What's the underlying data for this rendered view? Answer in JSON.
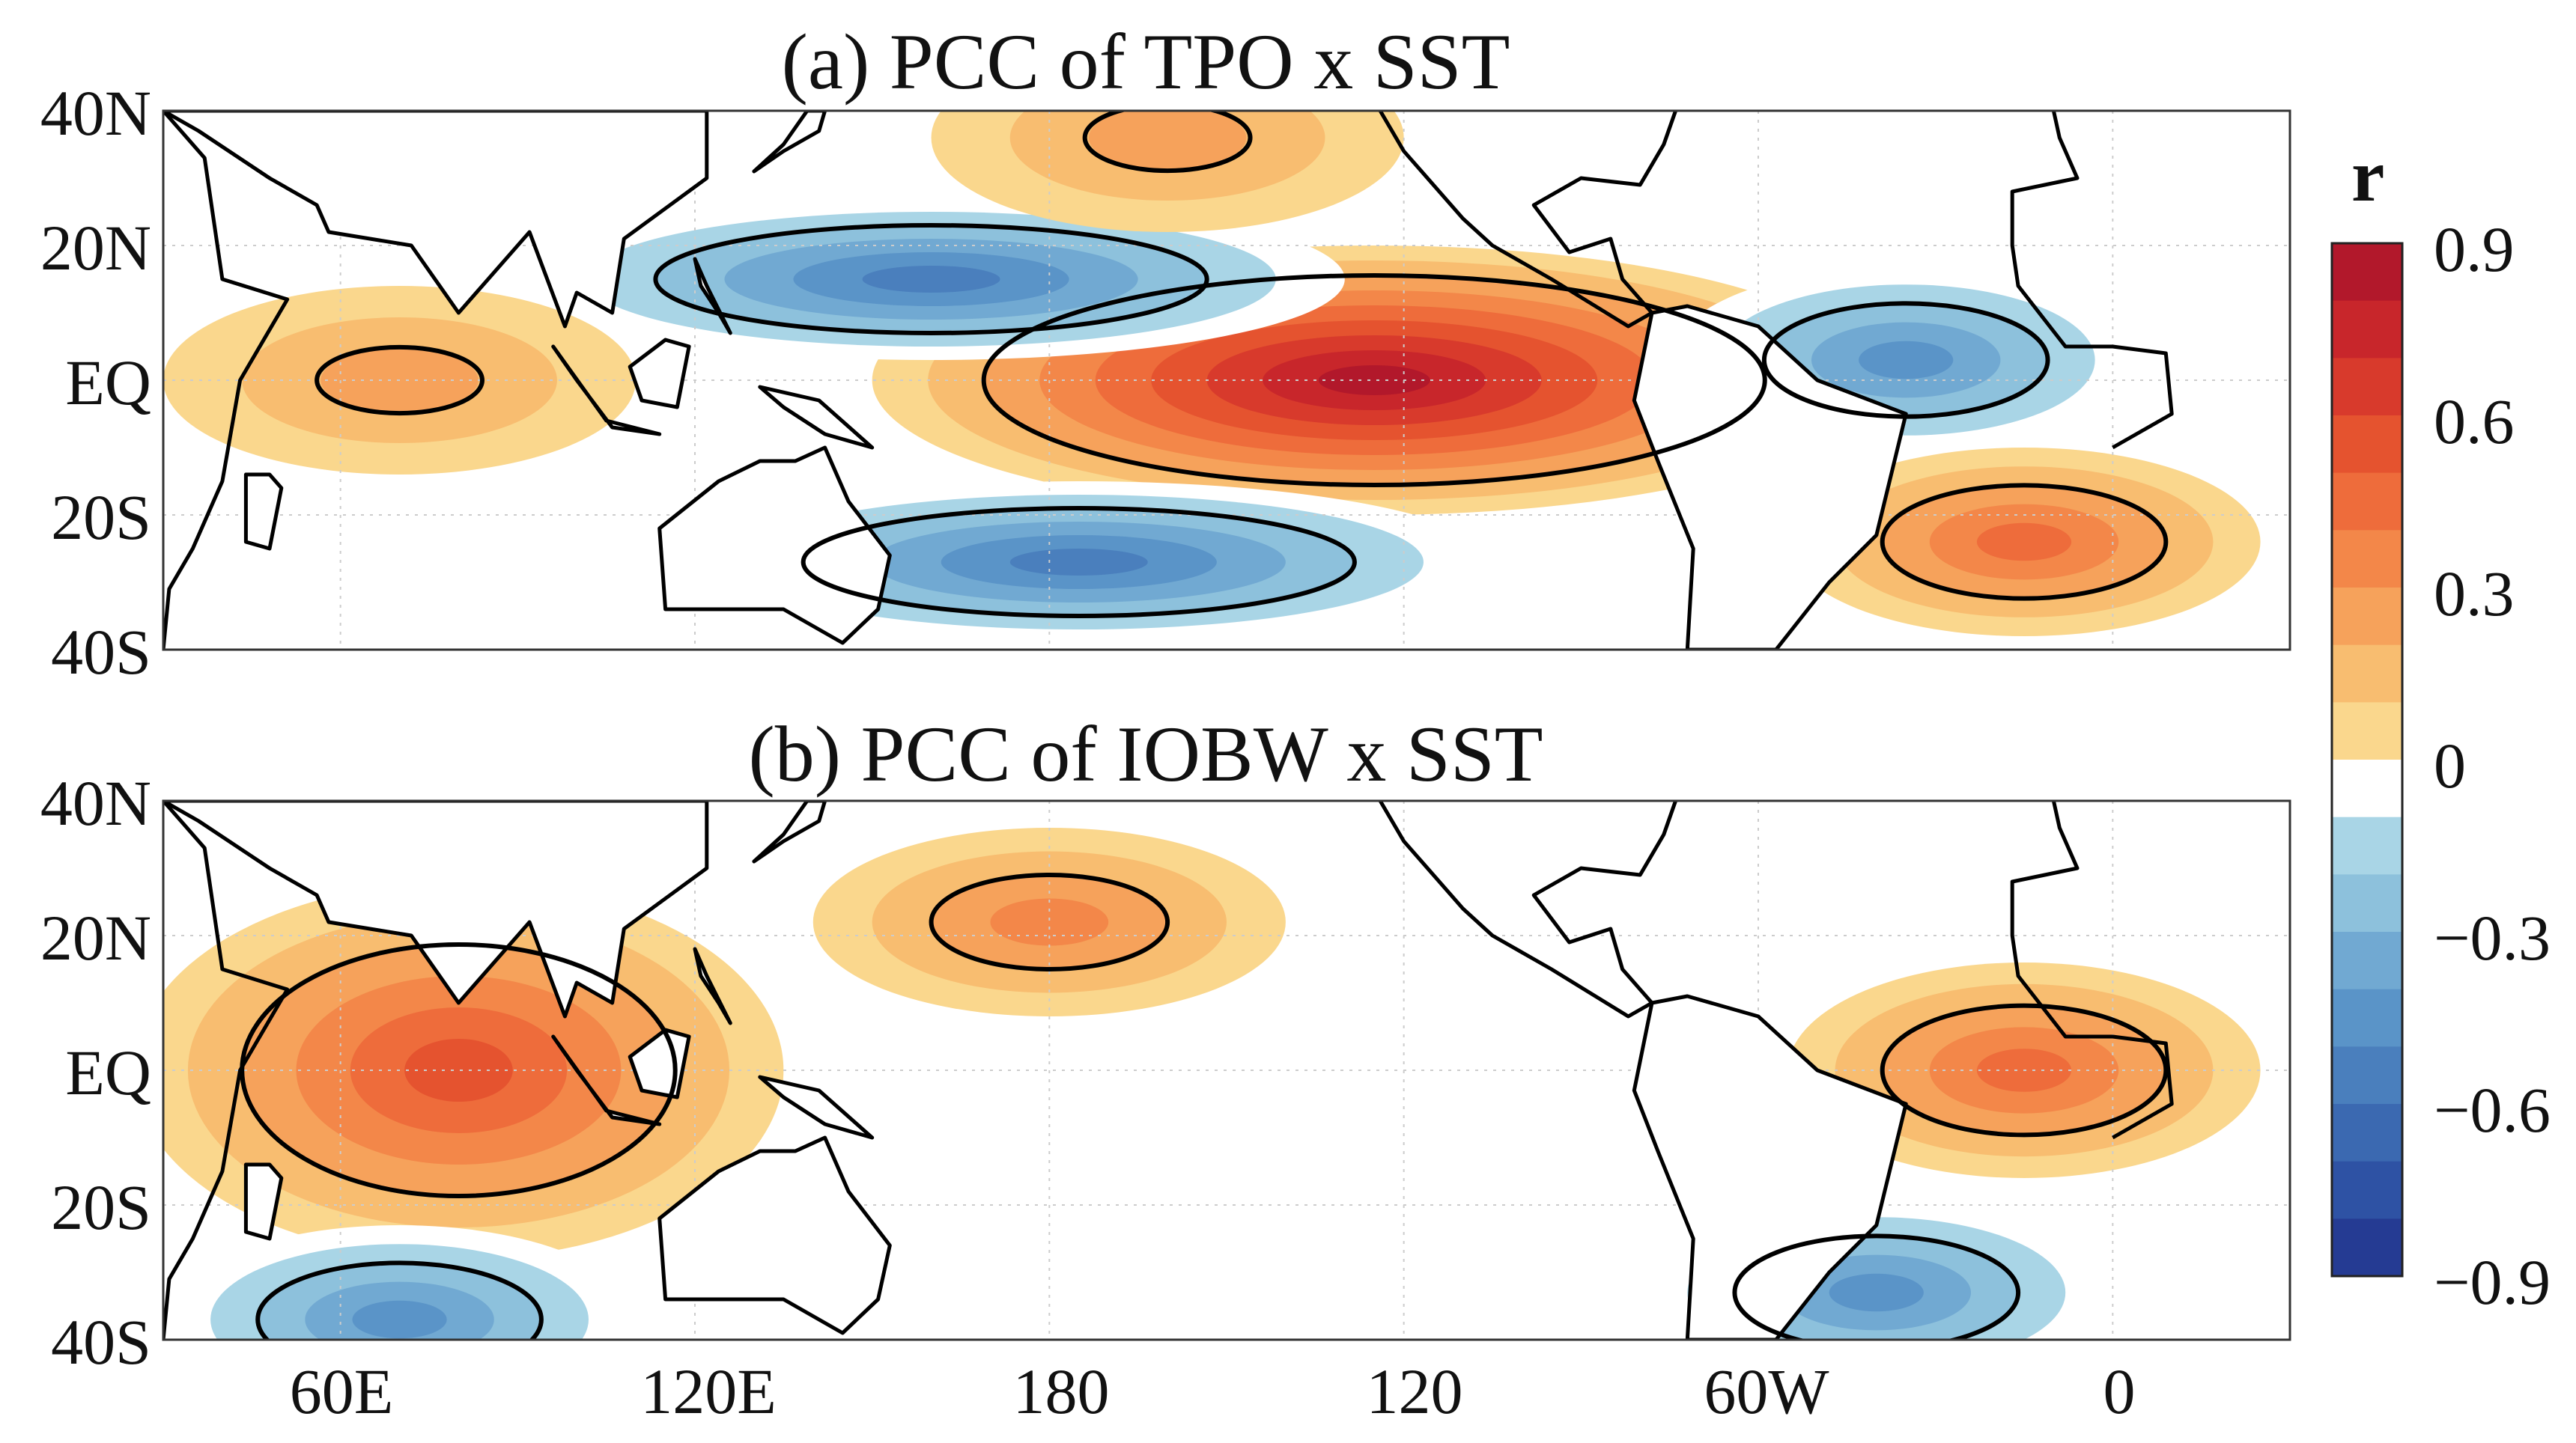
{
  "chart_data": [
    {
      "type": "heatmap",
      "title": "(a) PCC of TPO x SST",
      "variable": "r",
      "x_range": [
        "30E",
        "30E"
      ],
      "y_range": [
        "40S",
        "40N"
      ],
      "xticks": [
        "60E",
        "120E",
        "180",
        "120",
        "60W",
        "0"
      ],
      "yticks": [
        "40N",
        "20N",
        "EQ",
        "20S",
        "40S"
      ],
      "features": [
        {
          "pattern": "positive",
          "lon": 235,
          "lat": 0,
          "peak_r": 0.9,
          "note": "eastern/central equatorial Pacific warm tongue"
        },
        {
          "pattern": "negative",
          "lon": 160,
          "lat": 15,
          "peak_r": -0.6,
          "note": "western North Pacific horseshoe"
        },
        {
          "pattern": "negative",
          "lon": 185,
          "lat": -27,
          "peak_r": -0.6,
          "note": "western South Pacific horseshoe"
        },
        {
          "pattern": "negative",
          "lon": 325,
          "lat": 3,
          "peak_r": -0.5,
          "note": "equatorial Atlantic"
        },
        {
          "pattern": "positive",
          "lon": 345,
          "lat": -24,
          "peak_r": 0.5,
          "note": "South Atlantic"
        },
        {
          "pattern": "positive",
          "lon": 200,
          "lat": 36,
          "peak_r": 0.3,
          "note": "North Pacific east"
        },
        {
          "pattern": "positive",
          "lon": 70,
          "lat": 0,
          "peak_r": 0.3,
          "note": "Indian Ocean"
        }
      ]
    },
    {
      "type": "heatmap",
      "title": "(b) PCC of IOBW x SST",
      "variable": "r",
      "x_range": [
        "30E",
        "30E"
      ],
      "y_range": [
        "40S",
        "40N"
      ],
      "xticks": [
        "60E",
        "120E",
        "180",
        "120",
        "60W",
        "0"
      ],
      "yticks": [
        "40N",
        "20N",
        "EQ",
        "20S",
        "40S"
      ],
      "features": [
        {
          "pattern": "positive",
          "lon": 80,
          "lat": 0,
          "peak_r": 0.6,
          "note": "Indian Ocean basin-wide warming"
        },
        {
          "pattern": "positive",
          "lon": 345,
          "lat": 0,
          "peak_r": 0.5,
          "note": "tropical Atlantic"
        },
        {
          "pattern": "positive",
          "lon": 180,
          "lat": 22,
          "peak_r": 0.4,
          "note": "subtropical North Pacific"
        },
        {
          "pattern": "negative",
          "lon": 320,
          "lat": -33,
          "peak_r": -0.5,
          "note": "South Atlantic"
        },
        {
          "pattern": "negative",
          "lon": 70,
          "lat": -37,
          "peak_r": -0.5,
          "note": "southern Indian Ocean"
        }
      ]
    }
  ],
  "colorbar": {
    "label": "r",
    "range": [
      -0.9,
      0.9
    ],
    "ticks": [
      "0.9",
      "0.6",
      "0.3",
      "0",
      "−0.3",
      "−0.6",
      "−0.9"
    ],
    "levels_top_to_bottom": [
      "#b2182b",
      "#c8262b",
      "#d83a2c",
      "#e5532f",
      "#ee6c3b",
      "#f38749",
      "#f6a25b",
      "#f8bd70",
      "#fad78d",
      "#ffffff",
      "#a9d5e6",
      "#8dc1dc",
      "#71a9d2",
      "#5a94c8",
      "#4a7fbd",
      "#3b69b1",
      "#2e52a4",
      "#253b93"
    ]
  },
  "panels": {
    "a": {
      "title": "(a) PCC of TPO x SST"
    },
    "b": {
      "title": "(b) PCC of IOBW x SST"
    }
  },
  "lat_labels": [
    "40N",
    "20N",
    "EQ",
    "20S",
    "40S"
  ],
  "lon_labels": [
    "60E",
    "120E",
    "180",
    "120",
    "60W",
    "0"
  ],
  "colors": {
    "significance_contour": "#000000",
    "coastline": "#000000",
    "grid": "#cccccc"
  }
}
